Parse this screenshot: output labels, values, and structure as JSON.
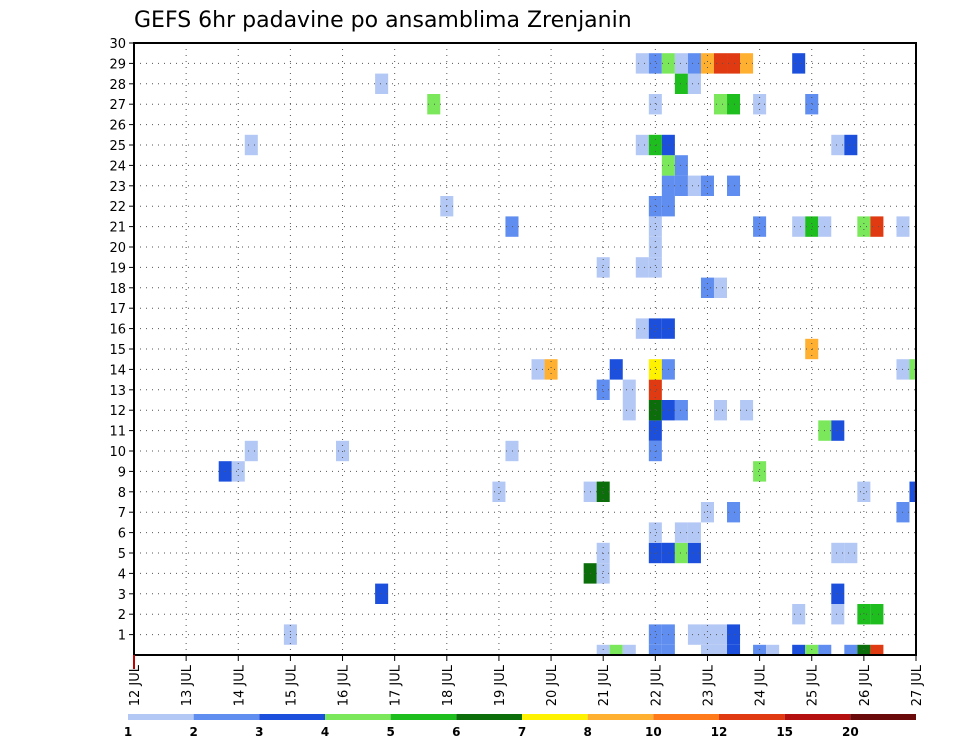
{
  "chart_data": {
    "type": "heatmap",
    "title": "GEFS 6hr padavine po ansamblima Zrenjanin",
    "xlabel": "",
    "ylabel": "",
    "x_ticks": [
      "12 JUL",
      "13 JUL",
      "14 JUL",
      "15 JUL",
      "16 JUL",
      "17 JUL",
      "18 JUL",
      "19 JUL",
      "20 JUL",
      "21 JUL",
      "22 JUL",
      "23 JUL",
      "24 JUL",
      "25 JUL",
      "26 JUL",
      "27 JUL"
    ],
    "y_ticks": [
      "1",
      "2",
      "3",
      "4",
      "5",
      "6",
      "7",
      "8",
      "9",
      "10",
      "11",
      "12",
      "13",
      "14",
      "15",
      "16",
      "17",
      "18",
      "19",
      "20",
      "21",
      "22",
      "23",
      "24",
      "25",
      "26",
      "27",
      "28",
      "29",
      "30"
    ],
    "x_range_days": [
      12,
      27
    ],
    "y_range": [
      0,
      30
    ],
    "grid": true,
    "time_step_hours": 6,
    "colorbar": {
      "labels": [
        "1",
        "2",
        "3",
        "4",
        "5",
        "6",
        "7",
        "8",
        "10",
        "12",
        "15",
        "20"
      ],
      "colors": [
        "#b4c8f5",
        "#5f8ef0",
        "#1c4fdc",
        "#7ae85a",
        "#1fbe1f",
        "#0b6e0b",
        "#fff200",
        "#ffb030",
        "#ff7a1a",
        "#e03a12",
        "#b51010",
        "#6a0a0a"
      ]
    },
    "values": [
      {
        "day": 21.0,
        "member": 0,
        "value": 1.5
      },
      {
        "day": 21.25,
        "member": 0,
        "value": 4.5
      },
      {
        "day": 21.5,
        "member": 0,
        "value": 1.5
      },
      {
        "day": 22.0,
        "member": 0,
        "value": 2.5
      },
      {
        "day": 22.25,
        "member": 0,
        "value": 2.5
      },
      {
        "day": 23.0,
        "member": 0,
        "value": 1.5
      },
      {
        "day": 23.25,
        "member": 0,
        "value": 1.5
      },
      {
        "day": 23.5,
        "member": 0,
        "value": 3.5
      },
      {
        "day": 24.0,
        "member": 0,
        "value": 2.5
      },
      {
        "day": 24.25,
        "member": 0,
        "value": 1.5
      },
      {
        "day": 24.75,
        "member": 0,
        "value": 3.5
      },
      {
        "day": 25.0,
        "member": 0,
        "value": 4.5
      },
      {
        "day": 25.25,
        "member": 0,
        "value": 2.5
      },
      {
        "day": 25.75,
        "member": 0,
        "value": 2.5
      },
      {
        "day": 26.0,
        "member": 0,
        "value": 6.5
      },
      {
        "day": 26.25,
        "member": 0,
        "value": 13.0
      },
      {
        "day": 22.0,
        "member": 1,
        "value": 2.5
      },
      {
        "day": 22.25,
        "member": 1,
        "value": 2.5
      },
      {
        "day": 22.75,
        "member": 1,
        "value": 1.5
      },
      {
        "day": 23.0,
        "member": 1,
        "value": 1.5
      },
      {
        "day": 23.25,
        "member": 1,
        "value": 1.5
      },
      {
        "day": 23.5,
        "member": 1,
        "value": 3.5
      },
      {
        "day": 15.0,
        "member": 1,
        "value": 1.5
      },
      {
        "day": 24.75,
        "member": 2,
        "value": 1.5
      },
      {
        "day": 25.5,
        "member": 2,
        "value": 1.5
      },
      {
        "day": 26.0,
        "member": 2,
        "value": 5.5
      },
      {
        "day": 26.25,
        "member": 2,
        "value": 5.5
      },
      {
        "day": 16.75,
        "member": 3,
        "value": 3.5
      },
      {
        "day": 25.5,
        "member": 3,
        "value": 3.5
      },
      {
        "day": 20.75,
        "member": 4,
        "value": 6.5
      },
      {
        "day": 21.0,
        "member": 4,
        "value": 1.5
      },
      {
        "day": 21.0,
        "member": 5,
        "value": 1.5
      },
      {
        "day": 22.0,
        "member": 5,
        "value": 3.5
      },
      {
        "day": 22.25,
        "member": 5,
        "value": 3.5
      },
      {
        "day": 22.5,
        "member": 5,
        "value": 4.5
      },
      {
        "day": 22.75,
        "member": 5,
        "value": 3.5
      },
      {
        "day": 25.5,
        "member": 5,
        "value": 1.5
      },
      {
        "day": 25.75,
        "member": 5,
        "value": 1.5
      },
      {
        "day": 22.0,
        "member": 6,
        "value": 1.5
      },
      {
        "day": 22.5,
        "member": 6,
        "value": 1.5
      },
      {
        "day": 22.75,
        "member": 6,
        "value": 1.5
      },
      {
        "day": 23.0,
        "member": 7,
        "value": 1.5
      },
      {
        "day": 23.5,
        "member": 7,
        "value": 2.5
      },
      {
        "day": 26.75,
        "member": 7,
        "value": 2.5
      },
      {
        "day": 19.0,
        "member": 8,
        "value": 1.5
      },
      {
        "day": 20.75,
        "member": 8,
        "value": 1.5
      },
      {
        "day": 21.0,
        "member": 8,
        "value": 6.5
      },
      {
        "day": 26.0,
        "member": 8,
        "value": 1.5
      },
      {
        "day": 27.0,
        "member": 8,
        "value": 3.5
      },
      {
        "day": 13.75,
        "member": 9,
        "value": 3.5
      },
      {
        "day": 14.0,
        "member": 9,
        "value": 1.5
      },
      {
        "day": 24.0,
        "member": 9,
        "value": 4.5
      },
      {
        "day": 14.25,
        "member": 10,
        "value": 1.5
      },
      {
        "day": 16.0,
        "member": 10,
        "value": 1.5
      },
      {
        "day": 19.25,
        "member": 10,
        "value": 1.5
      },
      {
        "day": 22.0,
        "member": 10,
        "value": 2.5
      },
      {
        "day": 22.0,
        "member": 11,
        "value": 3.5
      },
      {
        "day": 25.25,
        "member": 11,
        "value": 4.5
      },
      {
        "day": 25.5,
        "member": 11,
        "value": 3.5
      },
      {
        "day": 21.5,
        "member": 12,
        "value": 1.5
      },
      {
        "day": 22.0,
        "member": 12,
        "value": 6.5
      },
      {
        "day": 22.25,
        "member": 12,
        "value": 3.5
      },
      {
        "day": 22.5,
        "member": 12,
        "value": 2.5
      },
      {
        "day": 23.25,
        "member": 12,
        "value": 1.5
      },
      {
        "day": 23.75,
        "member": 12,
        "value": 1.5
      },
      {
        "day": 21.5,
        "member": 13,
        "value": 1.5
      },
      {
        "day": 22.0,
        "member": 13,
        "value": 13.0
      },
      {
        "day": 21.0,
        "member": 13,
        "value": 2.5
      },
      {
        "day": 19.75,
        "member": 14,
        "value": 1.5
      },
      {
        "day": 20.0,
        "member": 14,
        "value": 9.0
      },
      {
        "day": 21.25,
        "member": 14,
        "value": 3.5
      },
      {
        "day": 22.0,
        "member": 14,
        "value": 7.5
      },
      {
        "day": 22.25,
        "member": 14,
        "value": 2.5
      },
      {
        "day": 26.75,
        "member": 14,
        "value": 1.5
      },
      {
        "day": 27.0,
        "member": 14,
        "value": 4.5
      },
      {
        "day": 25.0,
        "member": 15,
        "value": 9.0
      },
      {
        "day": 21.75,
        "member": 16,
        "value": 1.5
      },
      {
        "day": 22.0,
        "member": 16,
        "value": 3.5
      },
      {
        "day": 22.25,
        "member": 16,
        "value": 3.5
      },
      {
        "day": 23.0,
        "member": 18,
        "value": 2.5
      },
      {
        "day": 23.25,
        "member": 18,
        "value": 1.5
      },
      {
        "day": 21.0,
        "member": 19,
        "value": 1.5
      },
      {
        "day": 21.75,
        "member": 19,
        "value": 1.5
      },
      {
        "day": 22.0,
        "member": 19,
        "value": 1.5
      },
      {
        "day": 22.0,
        "member": 20,
        "value": 1.5
      },
      {
        "day": 22.0,
        "member": 21,
        "value": 1.5
      },
      {
        "day": 19.25,
        "member": 21,
        "value": 2.5
      },
      {
        "day": 24.0,
        "member": 21,
        "value": 2.5
      },
      {
        "day": 24.75,
        "member": 21,
        "value": 1.5
      },
      {
        "day": 25.0,
        "member": 21,
        "value": 5.5
      },
      {
        "day": 25.25,
        "member": 21,
        "value": 1.5
      },
      {
        "day": 26.0,
        "member": 21,
        "value": 4.5
      },
      {
        "day": 26.25,
        "member": 21,
        "value": 13.0
      },
      {
        "day": 26.75,
        "member": 21,
        "value": 1.5
      },
      {
        "day": 18.0,
        "member": 22,
        "value": 1.5
      },
      {
        "day": 22.0,
        "member": 22,
        "value": 2.5
      },
      {
        "day": 22.25,
        "member": 22,
        "value": 2.5
      },
      {
        "day": 22.25,
        "member": 23,
        "value": 2.5
      },
      {
        "day": 22.5,
        "member": 23,
        "value": 2.5
      },
      {
        "day": 22.75,
        "member": 23,
        "value": 1.5
      },
      {
        "day": 23.0,
        "member": 23,
        "value": 2.5
      },
      {
        "day": 23.5,
        "member": 23,
        "value": 2.5
      },
      {
        "day": 22.25,
        "member": 24,
        "value": 4.5
      },
      {
        "day": 22.5,
        "member": 24,
        "value": 2.5
      },
      {
        "day": 14.25,
        "member": 25,
        "value": 1.5
      },
      {
        "day": 21.75,
        "member": 25,
        "value": 1.5
      },
      {
        "day": 22.0,
        "member": 25,
        "value": 5.5
      },
      {
        "day": 22.25,
        "member": 25,
        "value": 3.5
      },
      {
        "day": 25.5,
        "member": 25,
        "value": 1.5
      },
      {
        "day": 25.75,
        "member": 25,
        "value": 3.5
      },
      {
        "day": 17.75,
        "member": 27,
        "value": 4.5
      },
      {
        "day": 22.0,
        "member": 27,
        "value": 1.5
      },
      {
        "day": 23.25,
        "member": 27,
        "value": 4.5
      },
      {
        "day": 23.5,
        "member": 27,
        "value": 5.5
      },
      {
        "day": 24.0,
        "member": 27,
        "value": 1.5
      },
      {
        "day": 25.0,
        "member": 27,
        "value": 2.5
      },
      {
        "day": 16.75,
        "member": 28,
        "value": 1.5
      },
      {
        "day": 22.5,
        "member": 28,
        "value": 5.5
      },
      {
        "day": 22.75,
        "member": 28,
        "value": 1.5
      },
      {
        "day": 21.75,
        "member": 29,
        "value": 1.5
      },
      {
        "day": 22.0,
        "member": 29,
        "value": 2.5
      },
      {
        "day": 22.25,
        "member": 29,
        "value": 4.5
      },
      {
        "day": 22.5,
        "member": 29,
        "value": 1.5
      },
      {
        "day": 22.75,
        "member": 29,
        "value": 2.5
      },
      {
        "day": 23.0,
        "member": 29,
        "value": 9.0
      },
      {
        "day": 23.25,
        "member": 29,
        "value": 13.0
      },
      {
        "day": 23.5,
        "member": 29,
        "value": 13.0
      },
      {
        "day": 23.75,
        "member": 29,
        "value": 9.0
      },
      {
        "day": 24.75,
        "member": 29,
        "value": 3.5
      }
    ]
  }
}
